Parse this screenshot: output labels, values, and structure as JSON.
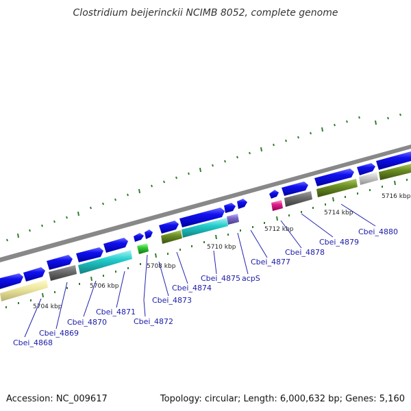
{
  "title": "Clostridium beijerinckii NCIMB 8052, complete genome",
  "footer": {
    "accession": "Accession: NC_009617",
    "summary": "Topology: circular; Length: 6,000,632 bp; Genes: 5,160"
  },
  "scale_labels": [
    "5704 kbp",
    "5706 kbp",
    "5708 kbp",
    "5710 kbp",
    "5712 kbp",
    "5714 kbp",
    "5716 kbp"
  ],
  "gene_labels": [
    "Cbei_4868",
    "Cbei_4869",
    "Cbei_4870",
    "Cbei_4871",
    "Cbei_4872",
    "Cbei_4873",
    "Cbei_4874",
    "Cbei_4875",
    "acpS",
    "Cbei_4877",
    "Cbei_4878",
    "Cbei_4879",
    "Cbei_4880"
  ],
  "colors": {
    "cds": "#0a0ae6",
    "cog_yellow": "#eee8a0",
    "cog_gray": "#6e6e6e",
    "cog_cyan": "#22cccc",
    "cog_green": "#33cc33",
    "cog_olive": "#6b8e23",
    "cog_purple": "#7b68c8",
    "cog_magenta": "#e0208c",
    "cog_lightgray": "#cccccc",
    "tick": "#2e7d2e",
    "backbone": "#888888",
    "label": "#1a1aa8"
  }
}
